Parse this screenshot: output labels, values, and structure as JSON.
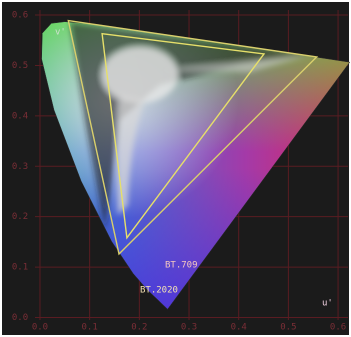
{
  "chart_data": {
    "type": "chromaticity",
    "x_label": "u'",
    "y_label": "v'",
    "xlim": [
      -0.01,
      0.62
    ],
    "ylim": [
      -0.005,
      0.61
    ],
    "xticks": [
      {
        "value": 0,
        "label": "0.0"
      },
      {
        "value": 0.1,
        "label": "0.1"
      },
      {
        "value": 0.2,
        "label": "0.2"
      },
      {
        "value": 0.3,
        "label": "0.3"
      },
      {
        "value": 0.4,
        "label": "0.4"
      },
      {
        "value": 0.5,
        "label": "0.5"
      },
      {
        "value": 0.6,
        "label": "0.6"
      }
    ],
    "yticks": [
      {
        "value": 0,
        "label": "0.0"
      },
      {
        "value": 0.1,
        "label": "0.1"
      },
      {
        "value": 0.2,
        "label": "0.2"
      },
      {
        "value": 0.3,
        "label": "0.3"
      },
      {
        "value": 0.4,
        "label": "0.4"
      },
      {
        "value": 0.5,
        "label": "0.5"
      },
      {
        "value": 0.6,
        "label": "0.6"
      }
    ],
    "grid": true,
    "grid_color": "#5a1c22",
    "locus": {
      "x": [
        0.2568,
        0.216,
        0.1877,
        0.1441,
        0.0828,
        0.0282,
        0.0033,
        0.0046,
        0.0231,
        0.0501,
        0.1127,
        0.2026,
        0.4035,
        0.5203,
        0.6234
      ],
      "values": [
        0.0165,
        0.055,
        0.0871,
        0.151,
        0.2708,
        0.4117,
        0.513,
        0.564,
        0.5837,
        0.5868,
        0.5821,
        0.5694,
        0.5393,
        0.5219,
        0.5065
      ]
    },
    "series": [
      {
        "name": "BT.709",
        "color": "#e6df6a",
        "label_color": "#f3c6c0",
        "x": [
          0.451,
          0.125,
          0.175
        ],
        "values": [
          0.523,
          0.563,
          0.158
        ]
      },
      {
        "name": "BT.2020",
        "color": "#d9cf6c",
        "label_color": "#f3e2b4",
        "x": [
          0.557,
          0.057,
          0.159
        ],
        "values": [
          0.517,
          0.589,
          0.126
        ]
      }
    ]
  }
}
